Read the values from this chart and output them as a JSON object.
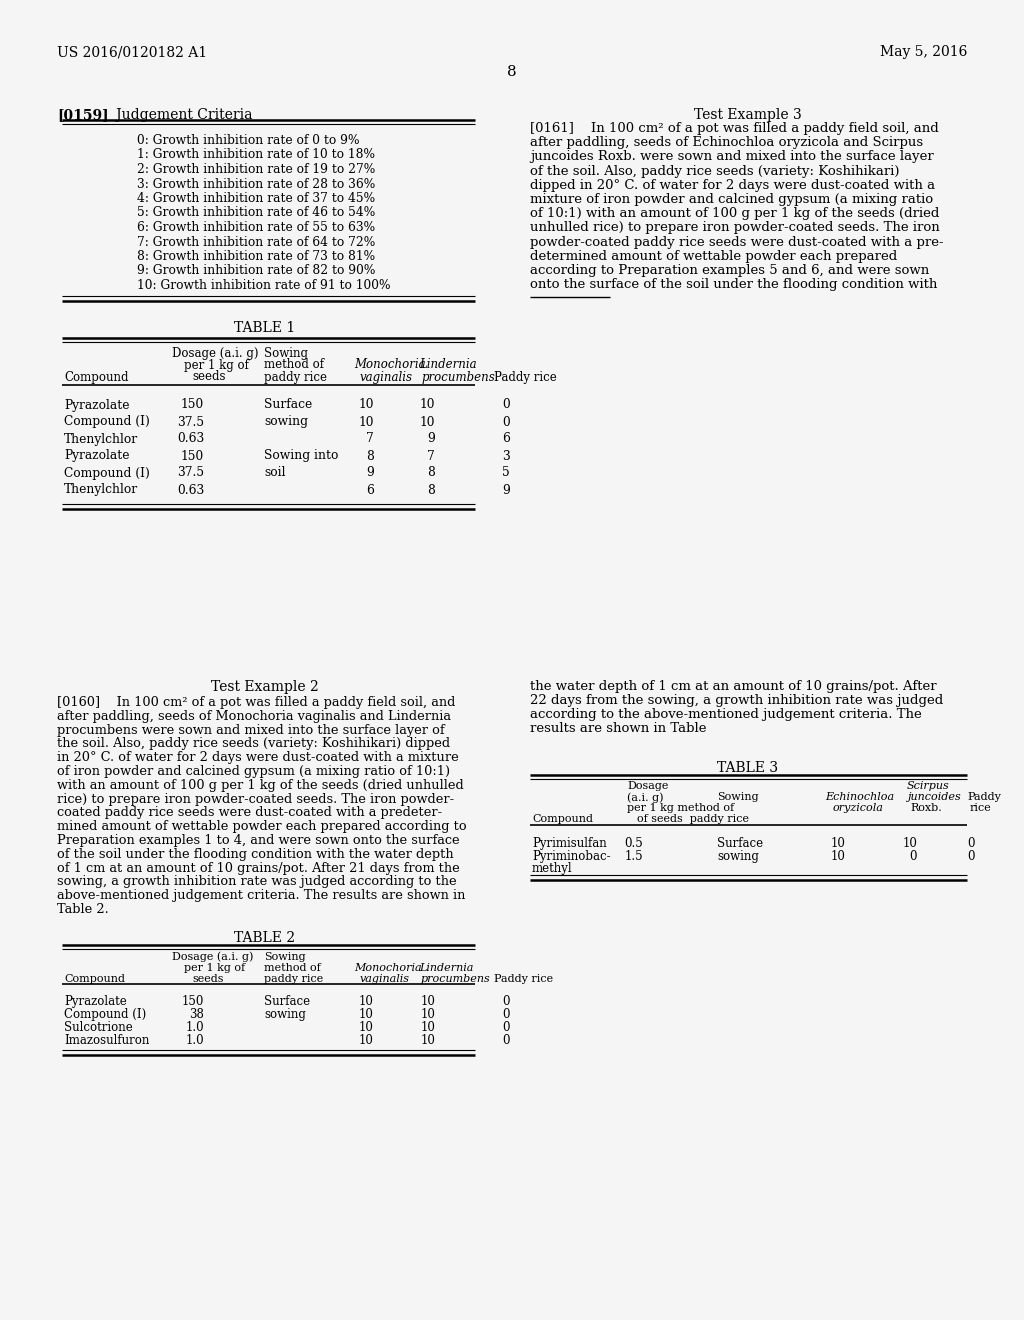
{
  "header_left": "US 2016/0120182 A1",
  "header_right": "May 5, 2016",
  "page_number": "8",
  "section_0159_title_bold": "[0159]",
  "section_0159_title_normal": "   Judgement Criteria",
  "test_example_3_title": "Test Example 3",
  "judgement_criteria": [
    "0: Growth inhibition rate of 0 to 9%",
    "1: Growth inhibition rate of 10 to 18%",
    "2: Growth inhibition rate of 19 to 27%",
    "3: Growth inhibition rate of 28 to 36%",
    "4: Growth inhibition rate of 37 to 45%",
    "5: Growth inhibition rate of 46 to 54%",
    "6: Growth inhibition rate of 55 to 63%",
    "7: Growth inhibition rate of 64 to 72%",
    "8: Growth inhibition rate of 73 to 81%",
    "9: Growth inhibition rate of 82 to 90%",
    "10: Growth inhibition rate of 91 to 100%"
  ],
  "para_0161_lines": [
    "[0161]    In 100 cm² of a pot was filled a paddy field soil, and",
    "after paddling, seeds of Echinochloa oryzicola and Scirpus",
    "juncoides Roxb. were sown and mixed into the surface layer",
    "of the soil. Also, paddy rice seeds (variety: Koshihikari)",
    "dipped in 20° C. of water for 2 days were dust-coated with a",
    "mixture of iron powder and calcined gypsum (a mixing ratio",
    "of 10:1) with an amount of 100 g per 1 kg of the seeds (dried",
    "unhulled rice) to prepare iron powder-coated seeds. The iron",
    "powder-coated paddy rice seeds were dust-coated with a pre-",
    "determined amount of wettable powder each prepared",
    "according to Preparation examples 5 and 6, and were sown",
    "onto the surface of the soil under the flooding condition with"
  ],
  "table1_title": "TABLE 1",
  "table1_rows": [
    [
      "Pyrazolate",
      "150",
      "Surface",
      "10",
      "10",
      "0"
    ],
    [
      "Compound (I)",
      "37.5",
      "sowing",
      "10",
      "10",
      "0"
    ],
    [
      "Thenylchlor",
      "0.63",
      "",
      "7",
      "9",
      "6"
    ],
    [
      "Pyrazolate",
      "150",
      "Sowing into",
      "8",
      "7",
      "3"
    ],
    [
      "Compound (I)",
      "37.5",
      "soil",
      "9",
      "8",
      "5"
    ],
    [
      "Thenylchlor",
      "0.63",
      "",
      "6",
      "8",
      "9"
    ]
  ],
  "test_example_2_title": "Test Example 2",
  "para_0160_lines": [
    "[0160]    In 100 cm² of a pot was filled a paddy field soil, and",
    "after paddling, seeds of Monochoria vaginalis and Lindernia",
    "procumbens were sown and mixed into the surface layer of",
    "the soil. Also, paddy rice seeds (variety: Koshihikari) dipped",
    "in 20° C. of water for 2 days were dust-coated with a mixture",
    "of iron powder and calcined gypsum (a mixing ratio of 10:1)",
    "with an amount of 100 g per 1 kg of the seeds (dried unhulled",
    "rice) to prepare iron powder-coated seeds. The iron powder-",
    "coated paddy rice seeds were dust-coated with a predeter-",
    "mined amount of wettable powder each prepared according to",
    "Preparation examples 1 to 4, and were sown onto the surface",
    "of the soil under the flooding condition with the water depth",
    "of 1 cm at an amount of 10 grains/pot. After 21 days from the",
    "sowing, a growth inhibition rate was judged according to the",
    "above-mentioned judgement criteria. The results are shown in",
    "Table 2."
  ],
  "para_0161b_lines": [
    "the water depth of 1 cm at an amount of 10 grains/pot. After",
    "22 days from the sowing, a growth inhibition rate was judged",
    "according to the above-mentioned judgement criteria. The",
    "results are shown in Table"
  ],
  "table2_title": "TABLE 2",
  "table2_rows": [
    [
      "Pyrazolate",
      "150",
      "Surface",
      "10",
      "10",
      "0"
    ],
    [
      "Compound (I)",
      "38",
      "sowing",
      "10",
      "10",
      "0"
    ],
    [
      "Sulcotrione",
      "1.0",
      "",
      "10",
      "10",
      "0"
    ],
    [
      "Imazosulfuron",
      "1.0",
      "",
      "10",
      "10",
      "0"
    ]
  ],
  "table3_title": "TABLE 3",
  "table3_rows": [
    [
      "Pyrimisulfan",
      "0.5",
      "Surface",
      "10",
      "10",
      "0"
    ],
    [
      "Pyriminobac-",
      "1.5",
      "sowing",
      "10",
      "0",
      "0"
    ],
    [
      "methyl",
      "",
      "",
      "",
      "",
      ""
    ]
  ],
  "bg_color": "#f5f5f5"
}
